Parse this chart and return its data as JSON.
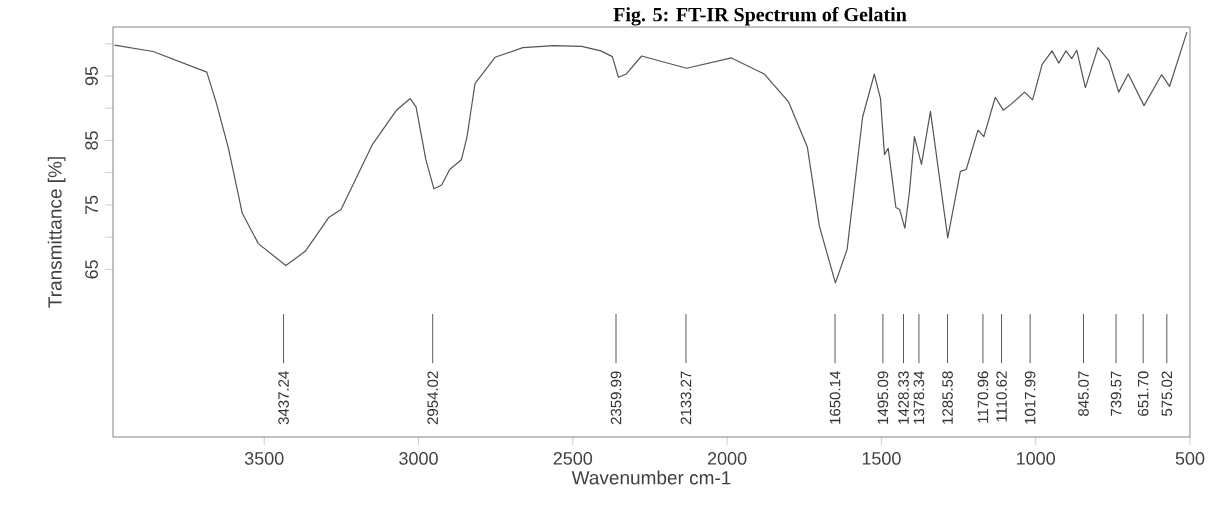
{
  "chart_data": {
    "type": "line",
    "title": "Fig. 5: FT-IR Spectrum of Gelatin",
    "xlabel": "Wavenumber cm-1",
    "ylabel": "Transmittance [%]",
    "xlim": [
      3990,
      500
    ],
    "ylim": [
      39,
      102.6
    ],
    "xticks": [
      3500,
      3000,
      2500,
      2000,
      1500,
      1000,
      500
    ],
    "yticks": [
      65,
      {
        "value": 70,
        "label": null
      },
      75,
      {
        "value": 80,
        "label": null
      },
      85,
      {
        "value": 90,
        "label": null
      },
      95,
      {
        "value": 100,
        "label": null
      }
    ],
    "grid": false,
    "marker": "none",
    "line_style": "solid",
    "x": [
      3985,
      3860,
      3686,
      3655,
      3616,
      3571,
      3519,
      3430,
      3367,
      3290,
      3251,
      3149,
      3073,
      3027,
      3008,
      2976,
      2950,
      2925,
      2899,
      2861,
      2843,
      2817,
      2752,
      2662,
      2561,
      2471,
      2409,
      2372,
      2352,
      2327,
      2277,
      2131,
      1986,
      1879,
      1801,
      1740,
      1701,
      1649,
      1611,
      1561,
      1523,
      1503,
      1490,
      1478,
      1453,
      1441,
      1424,
      1409,
      1393,
      1370,
      1341,
      1314,
      1285,
      1244,
      1225,
      1187,
      1168,
      1131,
      1105,
      1080,
      1036,
      1010,
      979,
      947,
      925,
      902,
      883,
      867,
      839,
      798,
      763,
      731,
      700,
      649,
      592,
      566,
      510
    ],
    "series": [
      {
        "color": "#555555",
        "values": [
          99.8,
          98.8,
          95.6,
          90.8,
          83.8,
          73.7,
          69,
          65.6,
          67.8,
          73.1,
          74.3,
          84.4,
          89.6,
          91.5,
          90.2,
          82,
          77.5,
          78.1,
          80.5,
          82,
          85.5,
          93.8,
          97.9,
          99.4,
          99.7,
          99.6,
          98.9,
          98,
          94.8,
          95.3,
          98.1,
          96.2,
          97.8,
          95.3,
          91,
          84,
          71.7,
          62.9,
          68.1,
          88.6,
          95.3,
          91.5,
          82.8,
          83.8,
          74.6,
          74.3,
          71.4,
          77,
          85.6,
          81.3,
          89.5,
          80,
          69.9,
          80.2,
          80.5,
          86.6,
          85.6,
          91.7,
          89.7,
          90.6,
          92.5,
          91.3,
          96.8,
          98.9,
          97,
          98.9,
          97.7,
          99,
          93.2,
          99.4,
          97.4,
          92.5,
          95.3,
          90.4,
          95.2,
          93.4,
          101.8
        ]
      }
    ],
    "ref_lines": [
      {
        "axis": "x",
        "value": 3437.24,
        "label": "3437.24"
      },
      {
        "axis": "x",
        "value": 2954.02,
        "label": "2954.02"
      },
      {
        "axis": "x",
        "value": 2359.99,
        "label": "2359.99"
      },
      {
        "axis": "x",
        "value": 2133.27,
        "label": "2133.27"
      },
      {
        "axis": "x",
        "value": 1650.14,
        "label": "1650.14"
      },
      {
        "axis": "x",
        "value": 1495.09,
        "label": "1495.09"
      },
      {
        "axis": "x",
        "value": 1428.33,
        "label": "1428.33"
      },
      {
        "axis": "x",
        "value": 1378.34,
        "label": "1378.34"
      },
      {
        "axis": "x",
        "value": 1285.58,
        "label": "1285.58"
      },
      {
        "axis": "x",
        "value": 1170.96,
        "label": "1170.96"
      },
      {
        "axis": "x",
        "value": 1110.62,
        "label": "1110.62"
      },
      {
        "axis": "x",
        "value": 1017.99,
        "label": "1017.99"
      },
      {
        "axis": "x",
        "value": 845.07,
        "label": "845.07"
      },
      {
        "axis": "x",
        "value": 739.57,
        "label": "739.57"
      },
      {
        "axis": "x",
        "value": 651.7,
        "label": "651.70"
      },
      {
        "axis": "x",
        "value": 575.02,
        "label": "575.02"
      }
    ]
  }
}
